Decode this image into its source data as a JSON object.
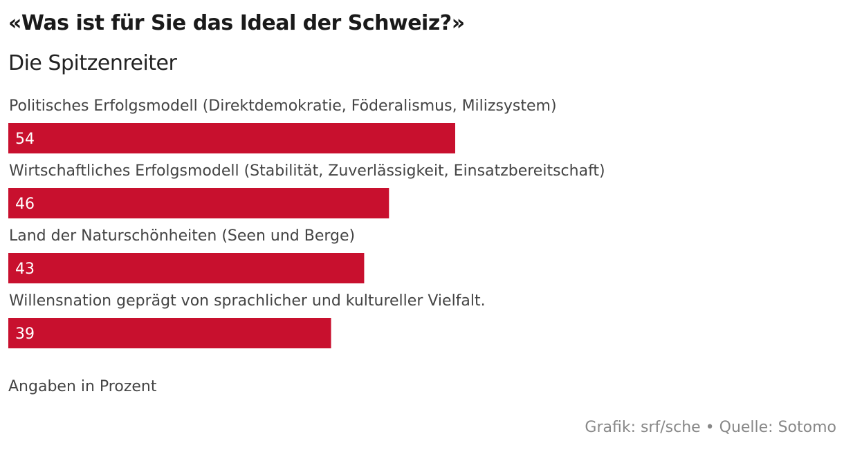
{
  "colors": {
    "bar": "#c8102e"
  },
  "header": {
    "title": "«Was ist für Sie das Ideal der Schweiz?»",
    "subtitle": "Die Spitzenreiter"
  },
  "footer": {
    "note": "Angaben in Prozent",
    "source": "Grafik: srf/sche • Quelle: Sotomo"
  },
  "chart_data": {
    "type": "bar",
    "orientation": "horizontal",
    "title": "«Was ist für Sie das Ideal der Schweiz?»",
    "subtitle": "Die Spitzenreiter",
    "categories": [
      "Politisches Erfolgsmodell (Direktdemokratie, Föderalismus, Milizsystem)",
      "Wirtschaftliches Erfolgsmodell (Stabilität, Zuverlässigkeit, Einsatzbereitschaft)",
      "Land der Naturschönheiten (Seen und Berge)",
      "Willensnation geprägt von sprachlicher und kultureller Vielfalt."
    ],
    "values": [
      54,
      46,
      43,
      39
    ],
    "unit": "Prozent",
    "xlim": [
      0,
      100
    ],
    "grid": false,
    "legend": "none"
  }
}
